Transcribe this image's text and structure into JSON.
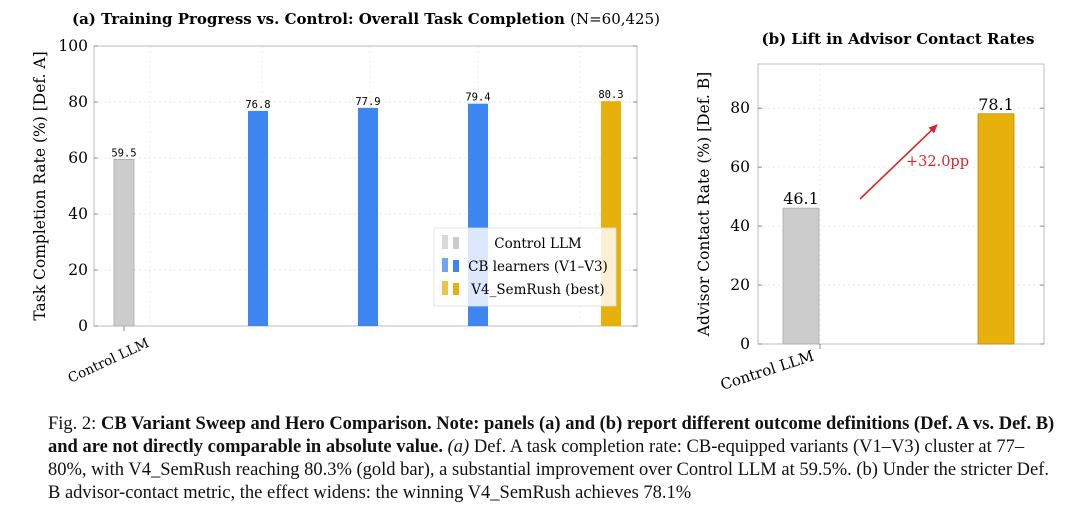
{
  "chart_data": [
    {
      "type": "bar",
      "title": "(a) Training Progress vs. Control: Overall Task Completion (N=60,425)",
      "title_main": "(a) Training Progress vs. Control: Overall Task Completion",
      "title_n": "(N=60,425)",
      "ylabel": "Task Completion Rate (%) [Def. A]",
      "ylim": [
        0,
        100
      ],
      "yticks": [
        "0",
        "20",
        "40",
        "60",
        "80",
        "100"
      ],
      "xtick_label": "Control LLM",
      "grid": true,
      "legend_position": "center-right",
      "legend": [
        {
          "label": "Control LLM",
          "color": "#cccccc"
        },
        {
          "label": "CB learners (V1–V3)",
          "color": "#3d85f0"
        },
        {
          "label": "V4_SemRush (best)",
          "color": "#e8b00a"
        }
      ],
      "bars": [
        {
          "value": 59.5,
          "label": "59.5",
          "color": "#cccccc"
        },
        {
          "value": 76.8,
          "label": "76.8",
          "color": "#3d85f0"
        },
        {
          "value": 77.9,
          "label": "77.9",
          "color": "#3d85f0"
        },
        {
          "value": 79.4,
          "label": "79.4",
          "color": "#3d85f0"
        },
        {
          "value": 80.3,
          "label": "80.3",
          "color": "#e8b00a"
        }
      ]
    },
    {
      "type": "bar",
      "title": "(b) Lift in Advisor Contact Rates",
      "ylabel": "Advisor Contact Rate (%) [Def. B]",
      "ylim": [
        0,
        95
      ],
      "yticks": [
        "0",
        "20",
        "40",
        "60",
        "80"
      ],
      "xtick_label": "Control LLM",
      "grid": true,
      "bars": [
        {
          "value": 46.1,
          "label": "46.1",
          "color": "#cccccc"
        },
        {
          "value": 78.1,
          "label": "78.1",
          "color": "#e8b00a"
        }
      ],
      "annotation": {
        "text": "+32.0pp",
        "color": "#d62728"
      }
    }
  ],
  "caption": {
    "fig_label": "Fig. 2: ",
    "bold": "CB Variant Sweep and Hero Comparison. Note: panels (a) and (b) report different outcome definitions (Def. A vs. Def. B) and are not directly comparable in absolute value.",
    "part_a_label": "(a)",
    "part_a_text": "Def. A task completion rate: CB-equipped variants (V1–V3) cluster at 77–80%, with V4_SemRush reaching 80.3% (gold bar), a substantial improvement over Control LLM",
    "rest": "at 59.5%. (b) Under the stricter Def. B advisor-contact metric, the effect widens: the winning V4_SemRush achieves 78.1%"
  }
}
